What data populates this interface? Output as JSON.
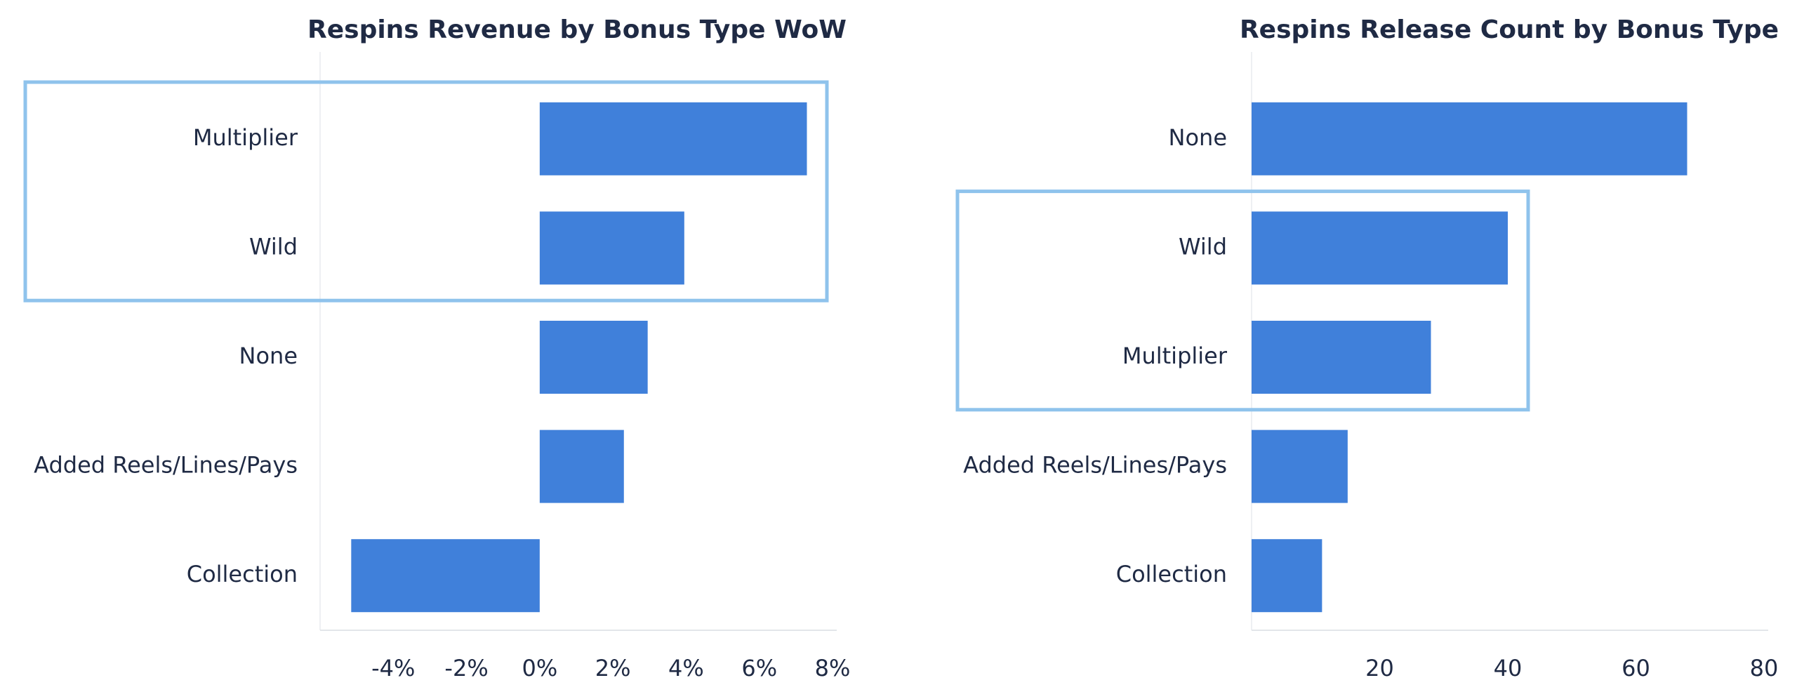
{
  "colors": {
    "bar": "#4080da",
    "highlight": "#8fc3ec",
    "text": "#1f2a44"
  },
  "chart_data": [
    {
      "type": "bar",
      "orientation": "horizontal",
      "title": "Respins Revenue by Bonus Type WoW",
      "categories": [
        "Multiplier",
        "Wild",
        "None",
        "Added Reels/Lines/Pays",
        "Collection"
      ],
      "values": [
        7.3,
        3.95,
        2.95,
        2.3,
        -5.15
      ],
      "value_unit": "%",
      "xlim": [
        -6,
        8
      ],
      "xticks": [
        -4,
        -2,
        0,
        2,
        4,
        6,
        8
      ],
      "xtick_labels": [
        "-4%",
        "-2%",
        "0%",
        "2%",
        "4%",
        "6%",
        "8%"
      ],
      "highlight_categories": [
        "Multiplier",
        "Wild"
      ],
      "grid": false
    },
    {
      "type": "bar",
      "orientation": "horizontal",
      "title": "Respins Release Count by Bonus Type",
      "categories": [
        "None",
        "Wild",
        "Multiplier",
        "Added Reels/Lines/Pays",
        "Collection"
      ],
      "values": [
        68,
        40,
        28,
        15,
        11
      ],
      "xlim": [
        0,
        80
      ],
      "xticks": [
        20,
        40,
        60,
        80
      ],
      "xtick_labels": [
        "20",
        "40",
        "60",
        "80"
      ],
      "highlight_categories": [
        "Wild",
        "Multiplier"
      ],
      "grid": false
    }
  ]
}
